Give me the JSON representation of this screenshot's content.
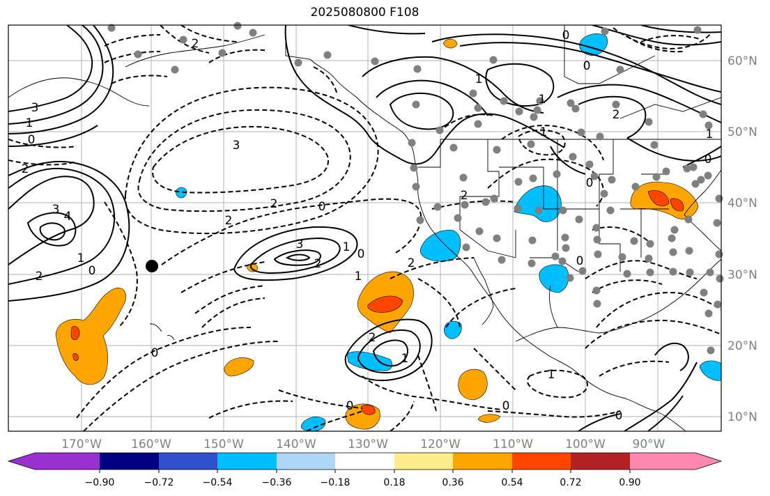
{
  "title": "2025080800 F108",
  "lon_labels": [
    "170°W",
    "160°W",
    "150°W",
    "140°W",
    "130°W",
    "120°W",
    "110°W",
    "100°W",
    "90°W"
  ],
  "lat_labels": [
    "60°N",
    "50°N",
    "40°N",
    "30°N",
    "20°N",
    "10°N"
  ],
  "colorbar": {
    "tick_labels": [
      "−0.90",
      "−0.72",
      "−0.54",
      "−0.36",
      "−0.18",
      "0.18",
      "0.36",
      "0.54",
      "0.72",
      "0.90"
    ],
    "colors": [
      "#9b30d0",
      "#000080",
      "#3050d0",
      "#00bfff",
      "#add8f7",
      "#ffffff",
      "#ffec8b",
      "#ffa500",
      "#ff4500",
      "#b22222",
      "#ff88b0"
    ]
  },
  "contour_labels": [
    "3",
    "4",
    "3",
    "0",
    "1",
    "2",
    "2",
    "1",
    "0",
    "3",
    "2",
    "2",
    "0",
    "3",
    "2",
    "1",
    "0",
    "1",
    "2",
    "2",
    "1",
    "0",
    "2",
    "1",
    "1",
    "1",
    "0",
    "0",
    "0",
    "0",
    "1",
    "0",
    "0",
    "2",
    "0",
    "2",
    "1",
    "0"
  ],
  "fill_colors": {
    "orange": "#ffa500",
    "red": "#ff4500",
    "blue": "#00bfff"
  },
  "station_color": "#808080",
  "marker_color": "#000000"
}
